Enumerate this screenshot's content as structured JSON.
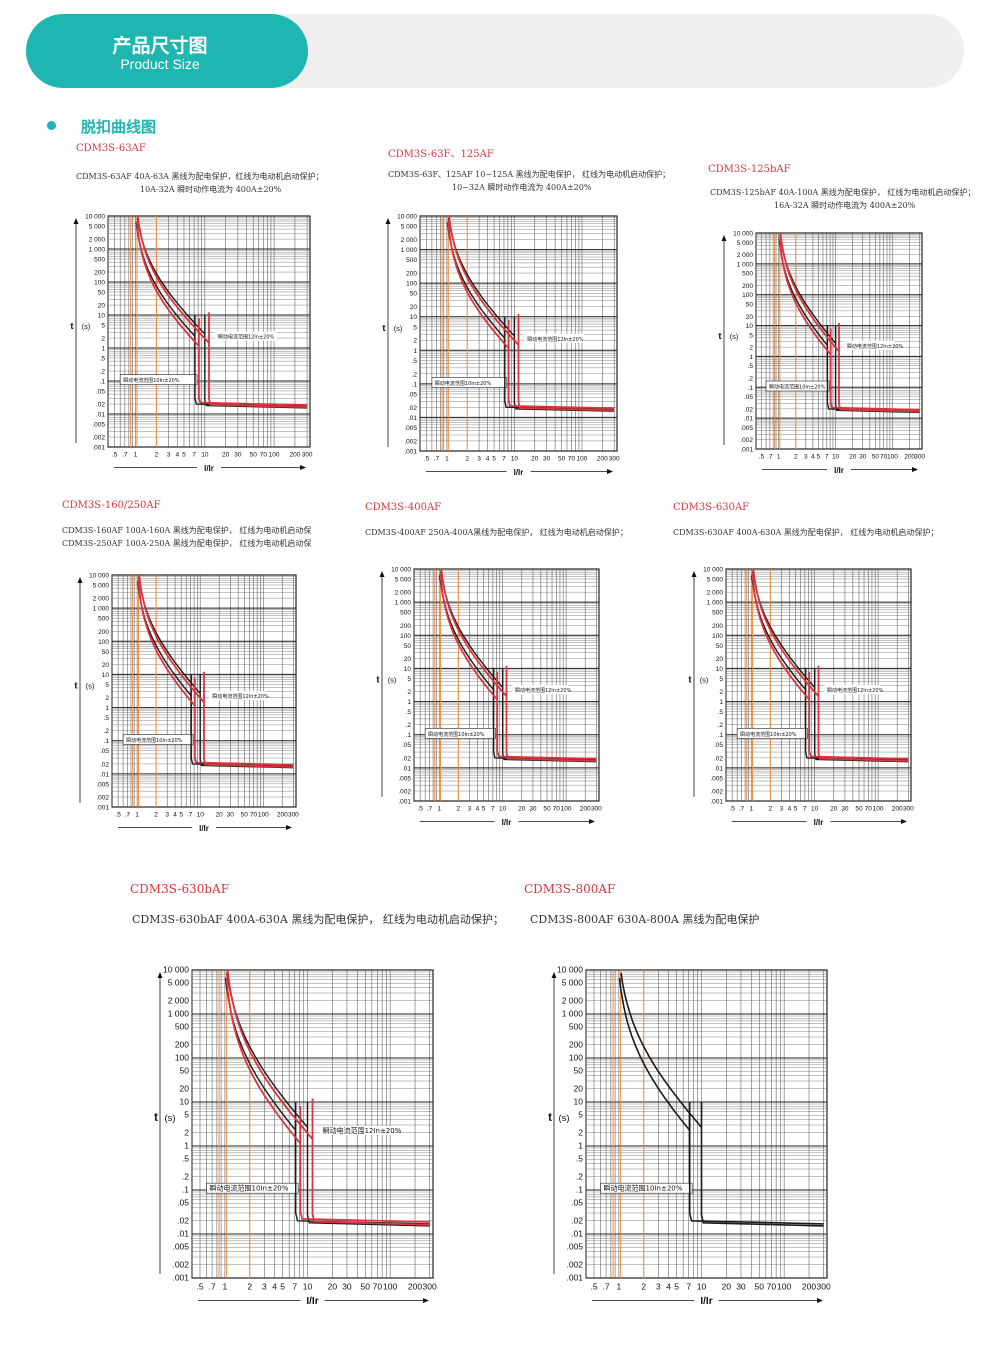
{
  "header": {
    "title_cn": "产品尺寸图",
    "title_en": "Product Size"
  },
  "section": {
    "title": "脱扣曲线图"
  },
  "colors": {
    "accent": "#1fb5b0",
    "protect_line": "#1a1a1a",
    "motor_line": "#d9363e",
    "marker_line": "#f08a3c"
  },
  "axes": {
    "y_axis_label": "t",
    "y_axis_unit": "s",
    "x_axis_label": "I/Ir",
    "y_ticks": [
      "10 000",
      "5 000",
      "2 000",
      "1 000",
      "500",
      "200",
      "100",
      "50",
      "20",
      "10",
      "5",
      "2",
      "1",
      ".5",
      ".2",
      ".1",
      ".05",
      ".02",
      ".01",
      ".005",
      ".002",
      ".001"
    ],
    "x_ticks": [
      ".5",
      ".7",
      "1",
      "2",
      "3",
      "4",
      "5",
      "7",
      "10",
      "20",
      "30",
      "50",
      "70",
      "100",
      "200",
      "300"
    ],
    "x_tick_labels_text": ".5 .7 1   2  3 4 5  7 10   20  30  50 70100  200 300"
  },
  "charts": [
    {
      "title": "CDM3S-63AF",
      "desc_lines": [
        "CDM3S-63AF   40A-63A 黑线为配电保护，红线为电动机启动保护；",
        "10A-32A 瞬时动作电流为 400A±20%"
      ],
      "annotation_upper": "瞬动电流范围12In±20%",
      "annotation_lower": "瞬动电流范围10In±20%",
      "has_red": true
    },
    {
      "title": "CDM3S-63F、125AF",
      "desc_lines": [
        "CDM3S-63F、125AF 10~125A 黑线为配电保护，  红线为电动机启动保护；",
        "10~32A 瞬时动作电流为 400A±20%"
      ],
      "annotation_upper": "瞬动电流范围12In±20%",
      "annotation_lower": "瞬动电流范围10In±20%",
      "has_red": true
    },
    {
      "title": "CDM3S-125bAF",
      "desc_lines": [
        "CDM3S-125bAF   40A-100A 黑线为配电保护，  红线为电动机启动保护；",
        "16A-32A 瞬时动作电流为 400A±20%"
      ],
      "annotation_upper": "瞬动电流范围12In±20%",
      "annotation_lower": "瞬动电流范围10In±20%",
      "has_red": true
    },
    {
      "title": "CDM3S-160/250AF",
      "desc_lines": [
        "CDM3S-160AF   100A-160A 黑线为配电保护，   红线为电动机启动保",
        "CDM3S-250AF   100A-250A 黑线为配电保护，   红线为电动机启动保"
      ],
      "annotation_upper": "瞬动电流范围12In±20%",
      "annotation_lower": "瞬动电流范围10In±20%",
      "has_red": true
    },
    {
      "title": "CDM3S-400AF",
      "desc_lines": [
        "CDM3S-400AF   250A-400A黑线为配电保护，   红线为电动机启动保护；"
      ],
      "annotation_upper": "瞬动电流范围12In±20%",
      "annotation_lower": "瞬动电流范围10In±20%",
      "has_red": true
    },
    {
      "title": "CDM3S-630AF",
      "desc_lines": [
        "CDM3S-630AF   400A-630A 黑线为配电保护，   红线为电动机启动保护；"
      ],
      "annotation_upper": "瞬动电流范围12In±20%",
      "annotation_lower": "瞬动电流范围10In±20%",
      "has_red": true
    },
    {
      "title": "CDM3S-630bAF",
      "desc_lines": [
        "CDM3S-630bAF  400A-630A 黑线为配电保护，  红线为电动机启动保护；"
      ],
      "annotation_upper": "瞬动电流范围12In±20%",
      "annotation_lower": "瞬动电流范围10In±20%",
      "has_red": true
    },
    {
      "title": "CDM3S-800AF",
      "desc_lines": [
        "CDM3S-800AF   630A-800A 黑线为配电保护"
      ],
      "annotation_upper": "",
      "annotation_lower": "瞬动电流范围10In±20%",
      "has_red": false
    }
  ]
}
